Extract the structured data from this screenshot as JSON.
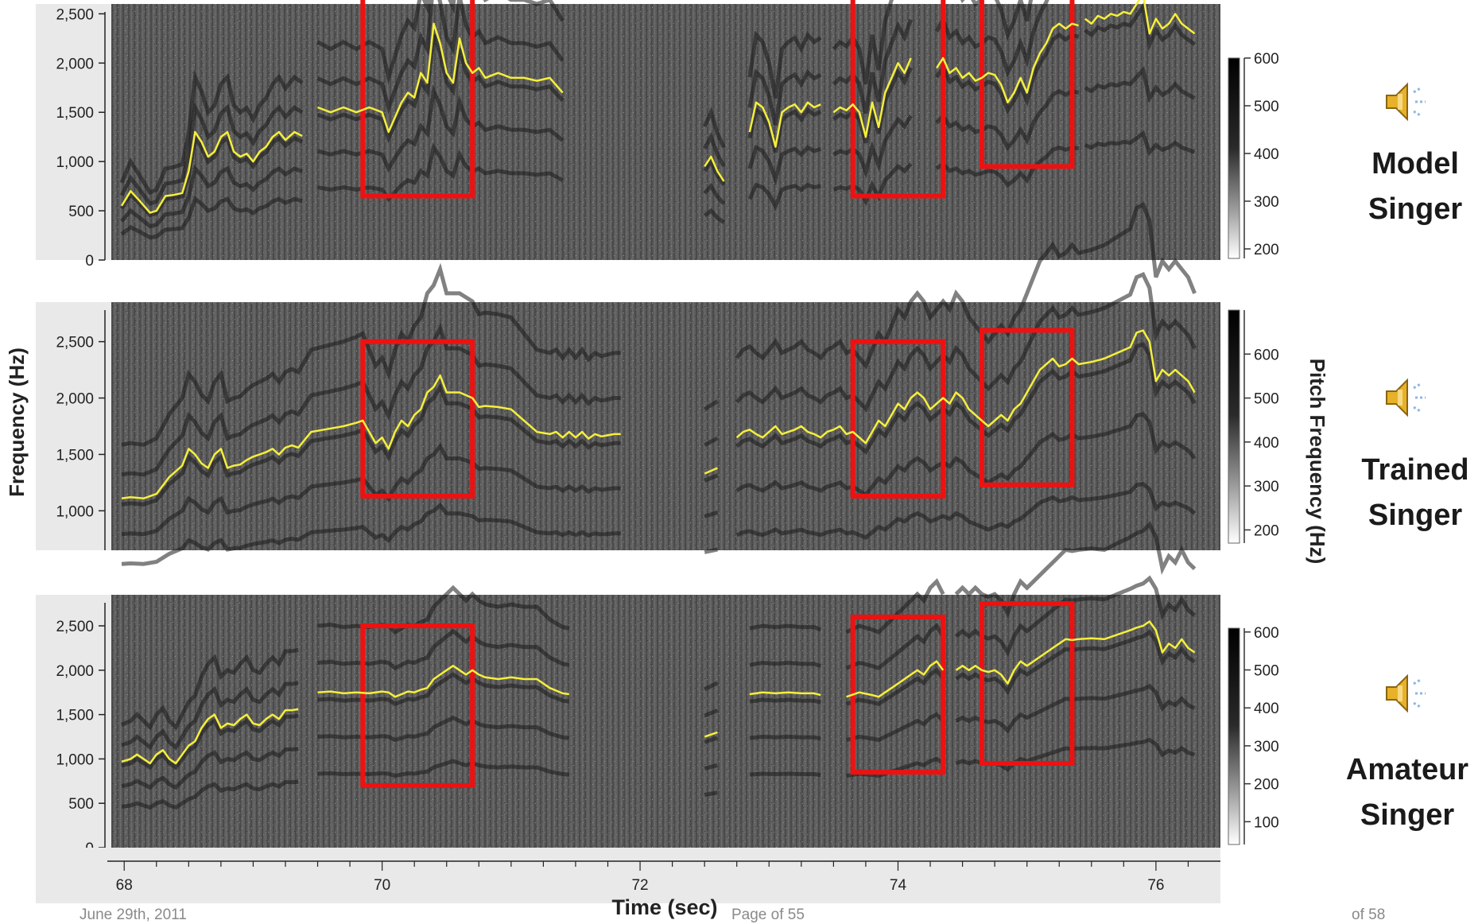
{
  "y_axis_label": "Frequency (Hz)",
  "x_axis_label": "Time (sec)",
  "colorbar_label": "Pitch Frequency (Hz)",
  "panels": [
    {
      "singer_line1": "Model",
      "singer_line2": "Singer"
    },
    {
      "singer_line1": "Trained",
      "singer_line2": "Singer"
    },
    {
      "singer_line1": "Amateur",
      "singer_line2": "Singer"
    }
  ],
  "speaker_icon": "speaker-sound-icon",
  "footer": {
    "left": "June 29th, 2011",
    "center": "Page of 55",
    "right": "of 58"
  },
  "colors": {
    "pitch_contour": "#f5ef3c",
    "highlight_box": "#ee1111",
    "spectrogram_bg": "#555555"
  },
  "chart_data": [
    {
      "type": "line",
      "title": "Model Singer",
      "xlabel": "Time (sec)",
      "ylabel": "Frequency (Hz)",
      "xlim": [
        67.9,
        76.5
      ],
      "ylim": [
        0,
        2600
      ],
      "y_ticks": [
        "0",
        "500",
        "1,000",
        "1,500",
        "2,000",
        "2,500"
      ],
      "y_tick_values": [
        0,
        500,
        1000,
        1500,
        2000,
        2500
      ],
      "colorbar_ticks": [
        "200",
        "300",
        "400",
        "500",
        "600"
      ],
      "colorbar_range": [
        180,
        600
      ],
      "highlight_time_ranges": [
        [
          69.85,
          70.7
        ],
        [
          73.65,
          74.35
        ],
        [
          74.65,
          75.35
        ]
      ],
      "highlight_freq_ranges": [
        [
          650,
          2700
        ],
        [
          650,
          2700
        ],
        [
          950,
          2800
        ]
      ],
      "series": [
        {
          "x": [
            67.98,
            68.05,
            68.12,
            68.2,
            68.25,
            68.32,
            68.38,
            68.45,
            68.5,
            68.55,
            68.6,
            68.65,
            68.7,
            68.75,
            68.8,
            68.85,
            68.9,
            68.95,
            69.0,
            69.05,
            69.1,
            69.15,
            69.2,
            69.25,
            69.32,
            69.38
          ],
          "y": [
            550,
            700,
            600,
            480,
            500,
            650,
            660,
            680,
            900,
            1300,
            1200,
            1050,
            1100,
            1250,
            1300,
            1100,
            1050,
            1080,
            1000,
            1100,
            1150,
            1250,
            1300,
            1220,
            1300,
            1260
          ]
        },
        {
          "x": [
            69.5,
            69.6,
            69.7,
            69.8,
            69.9,
            70.0,
            70.05,
            70.1,
            70.15,
            70.2,
            70.25,
            70.3,
            70.35,
            70.4,
            70.45,
            70.5,
            70.55,
            70.6,
            70.65,
            70.7,
            70.75,
            70.8,
            70.9,
            71.0,
            71.1,
            71.2,
            71.3,
            71.4
          ],
          "y": [
            1550,
            1500,
            1550,
            1500,
            1550,
            1500,
            1300,
            1450,
            1600,
            1700,
            1650,
            1900,
            1800,
            2400,
            2200,
            1900,
            1800,
            2250,
            2000,
            1900,
            1950,
            1850,
            1900,
            1850,
            1850,
            1820,
            1850,
            1700
          ]
        },
        {
          "x": [
            72.5,
            72.55,
            72.6,
            72.65
          ],
          "y": [
            950,
            1050,
            900,
            800
          ]
        },
        {
          "x": [
            72.85,
            72.9,
            72.95,
            73.0,
            73.05,
            73.1,
            73.15,
            73.2,
            73.25,
            73.3,
            73.35,
            73.4
          ],
          "y": [
            1300,
            1600,
            1550,
            1400,
            1150,
            1500,
            1550,
            1580,
            1500,
            1600,
            1550,
            1580
          ]
        },
        {
          "x": [
            73.5,
            73.55,
            73.6,
            73.65,
            73.7,
            73.75,
            73.8,
            73.85,
            73.9,
            73.95,
            74.0,
            74.05,
            74.1
          ],
          "y": [
            1500,
            1550,
            1520,
            1580,
            1500,
            1250,
            1600,
            1350,
            1700,
            1850,
            2000,
            1900,
            2050
          ]
        },
        {
          "x": [
            74.3,
            74.35,
            74.4,
            74.45,
            74.5,
            74.55,
            74.6,
            74.65,
            74.7,
            74.75,
            74.8,
            74.85,
            74.9,
            74.95,
            75.0,
            75.05,
            75.1,
            75.15,
            75.2,
            75.25,
            75.3,
            75.35,
            75.4
          ],
          "y": [
            1950,
            2050,
            1900,
            1950,
            1850,
            1900,
            1820,
            1850,
            1900,
            1880,
            1780,
            1600,
            1700,
            1850,
            1700,
            1950,
            2100,
            2200,
            2350,
            2400,
            2350,
            2400,
            2380
          ]
        },
        {
          "x": [
            75.45,
            75.5,
            75.55,
            75.6,
            75.65,
            75.7,
            75.75,
            75.8,
            75.85,
            75.9,
            75.95,
            76.0,
            76.05,
            76.1,
            76.15,
            76.2,
            76.25,
            76.3
          ],
          "y": [
            2450,
            2400,
            2480,
            2450,
            2500,
            2480,
            2520,
            2500,
            2600,
            2700,
            2300,
            2450,
            2350,
            2400,
            2500,
            2400,
            2350,
            2300
          ]
        }
      ]
    },
    {
      "type": "line",
      "title": "Trained Singer",
      "xlabel": "Time (sec)",
      "ylabel": "Frequency (Hz)",
      "xlim": [
        67.9,
        76.5
      ],
      "ylim": [
        650,
        2850
      ],
      "y_ticks": [
        "1,000",
        "1,500",
        "2,000",
        "2,500"
      ],
      "y_tick_values": [
        1000,
        1500,
        2000,
        2500
      ],
      "colorbar_ticks": [
        "200",
        "300",
        "400",
        "500",
        "600"
      ],
      "colorbar_range": [
        170,
        700
      ],
      "highlight_time_ranges": [
        [
          69.85,
          70.7
        ],
        [
          73.65,
          74.35
        ],
        [
          74.65,
          75.35
        ]
      ],
      "highlight_freq_ranges": [
        [
          1130,
          2500
        ],
        [
          1130,
          2500
        ],
        [
          1230,
          2600
        ]
      ],
      "series": [
        {
          "x": [
            67.98,
            68.05,
            68.15,
            68.25,
            68.35,
            68.45,
            68.5,
            68.55,
            68.6,
            68.65,
            68.7,
            68.75,
            68.8,
            68.85,
            68.9,
            68.95,
            69.0,
            69.05,
            69.1,
            69.15,
            69.2,
            69.25,
            69.3,
            69.35,
            69.45,
            69.55,
            69.7,
            69.8,
            69.85,
            69.9,
            69.95,
            70.0,
            70.05,
            70.1,
            70.15,
            70.2,
            70.25,
            70.3,
            70.35,
            70.4,
            70.45,
            70.5,
            70.6,
            70.7,
            70.75,
            70.8,
            70.9,
            71.0,
            71.1,
            71.2,
            71.3,
            71.35,
            71.4,
            71.45,
            71.5,
            71.55,
            71.6,
            71.65,
            71.7,
            71.8,
            71.85
          ],
          "y": [
            1110,
            1120,
            1110,
            1150,
            1300,
            1400,
            1550,
            1500,
            1420,
            1380,
            1500,
            1550,
            1380,
            1400,
            1410,
            1450,
            1480,
            1500,
            1520,
            1550,
            1500,
            1560,
            1580,
            1560,
            1700,
            1720,
            1750,
            1780,
            1800,
            1700,
            1600,
            1650,
            1550,
            1700,
            1800,
            1750,
            1850,
            1900,
            2050,
            2100,
            2200,
            2050,
            2050,
            2000,
            1920,
            1930,
            1920,
            1900,
            1800,
            1700,
            1680,
            1700,
            1650,
            1700,
            1650,
            1700,
            1640,
            1680,
            1660,
            1680,
            1680
          ]
        },
        {
          "x": [
            72.5,
            72.6
          ],
          "y": [
            1330,
            1380
          ]
        },
        {
          "x": [
            72.75,
            72.8,
            72.85,
            72.9,
            72.95,
            73.0,
            73.05,
            73.1,
            73.15,
            73.2,
            73.25,
            73.3,
            73.35,
            73.4,
            73.45,
            73.5,
            73.55,
            73.6,
            73.65,
            73.7,
            73.75,
            73.8,
            73.85,
            73.9,
            73.95,
            74.0,
            74.05,
            74.1,
            74.15,
            74.2,
            74.25,
            74.3,
            74.35,
            74.4,
            74.45,
            74.5,
            74.55,
            74.6,
            74.65,
            74.7,
            74.75,
            74.8,
            74.85,
            74.9,
            74.95,
            75.0,
            75.05,
            75.1,
            75.15,
            75.2,
            75.25,
            75.3,
            75.35,
            75.4,
            75.5,
            75.6,
            75.7,
            75.8,
            75.85,
            75.9,
            75.95,
            76.0,
            76.05,
            76.1,
            76.15,
            76.2,
            76.25,
            76.3
          ],
          "y": [
            1650,
            1700,
            1720,
            1680,
            1650,
            1700,
            1750,
            1680,
            1700,
            1720,
            1750,
            1700,
            1680,
            1650,
            1700,
            1720,
            1750,
            1680,
            1700,
            1650,
            1600,
            1700,
            1800,
            1750,
            1850,
            1950,
            1900,
            2000,
            2050,
            2000,
            1900,
            1950,
            2000,
            1950,
            2050,
            2000,
            1900,
            1850,
            1800,
            1750,
            1800,
            1850,
            1800,
            1900,
            1950,
            2050,
            2150,
            2250,
            2300,
            2350,
            2280,
            2300,
            2350,
            2300,
            2320,
            2350,
            2400,
            2450,
            2580,
            2600,
            2500,
            2150,
            2250,
            2200,
            2250,
            2200,
            2150,
            2050
          ]
        }
      ]
    },
    {
      "type": "line",
      "title": "Amateur Singer",
      "xlabel": "Time (sec)",
      "ylabel": "Frequency (Hz)",
      "xlim": [
        67.9,
        76.5
      ],
      "ylim": [
        0,
        2850
      ],
      "y_ticks": [
        "0",
        "500",
        "1,000",
        "1,500",
        "2,000",
        "2,500"
      ],
      "y_tick_values": [
        0,
        500,
        1000,
        1500,
        2000,
        2500
      ],
      "colorbar_ticks": [
        "100",
        "200",
        "300",
        "400",
        "500",
        "600"
      ],
      "colorbar_range": [
        40,
        610
      ],
      "highlight_time_ranges": [
        [
          69.85,
          70.7
        ],
        [
          73.65,
          74.35
        ],
        [
          74.65,
          75.35
        ]
      ],
      "highlight_freq_ranges": [
        [
          700,
          2500
        ],
        [
          850,
          2600
        ],
        [
          950,
          2750
        ]
      ],
      "x_ticks": [
        68,
        70,
        72,
        74,
        76
      ],
      "series": [
        {
          "x": [
            67.98,
            68.05,
            68.1,
            68.15,
            68.2,
            68.25,
            68.3,
            68.35,
            68.4,
            68.45,
            68.5,
            68.55,
            68.6,
            68.65,
            68.7,
            68.75,
            68.8,
            68.85,
            68.9,
            68.95,
            69.0,
            69.05,
            69.1,
            69.15,
            69.2,
            69.25,
            69.3,
            69.35
          ],
          "y": [
            970,
            1000,
            1050,
            1000,
            950,
            1050,
            1100,
            1000,
            950,
            1050,
            1150,
            1200,
            1350,
            1450,
            1500,
            1350,
            1400,
            1380,
            1450,
            1500,
            1400,
            1380,
            1450,
            1500,
            1450,
            1550,
            1550,
            1560
          ]
        },
        {
          "x": [
            69.5,
            69.6,
            69.7,
            69.8,
            69.9,
            70.0,
            70.05,
            70.1,
            70.15,
            70.2,
            70.25,
            70.3,
            70.35,
            70.4,
            70.45,
            70.5,
            70.55,
            70.6,
            70.65,
            70.7,
            70.75,
            70.8,
            70.9,
            71.0,
            71.1,
            71.2,
            71.3,
            71.4,
            71.45
          ],
          "y": [
            1750,
            1760,
            1740,
            1750,
            1740,
            1760,
            1750,
            1700,
            1730,
            1760,
            1750,
            1780,
            1800,
            1900,
            1950,
            2000,
            2050,
            2000,
            1950,
            2000,
            1950,
            1920,
            1900,
            1920,
            1900,
            1900,
            1800,
            1740,
            1730
          ]
        },
        {
          "x": [
            72.5,
            72.6
          ],
          "y": [
            1250,
            1300
          ]
        },
        {
          "x": [
            72.85,
            72.95,
            73.05,
            73.15,
            73.25,
            73.35,
            73.4
          ],
          "y": [
            1730,
            1750,
            1740,
            1750,
            1740,
            1740,
            1720
          ]
        },
        {
          "x": [
            73.6,
            73.7,
            73.8,
            73.85,
            73.9,
            73.95,
            74.0,
            74.05,
            74.1,
            74.15,
            74.2,
            74.25,
            74.3,
            74.35
          ],
          "y": [
            1700,
            1750,
            1720,
            1700,
            1750,
            1800,
            1850,
            1900,
            1950,
            2000,
            1950,
            2050,
            2100,
            2000
          ]
        },
        {
          "x": [
            74.45,
            74.5,
            74.55,
            74.6,
            74.65,
            74.7,
            74.75,
            74.8,
            74.85,
            74.9,
            74.95,
            75.0,
            75.05,
            75.1,
            75.15,
            75.2,
            75.25,
            75.3,
            75.35,
            75.4,
            75.5,
            75.6,
            75.7,
            75.8,
            75.85,
            75.9,
            75.95,
            76.0,
            76.05,
            76.1,
            76.15,
            76.2,
            76.25,
            76.3
          ],
          "y": [
            2000,
            2050,
            2000,
            2050,
            2000,
            1980,
            2000,
            1950,
            1850,
            2000,
            2100,
            2050,
            2100,
            2150,
            2200,
            2250,
            2300,
            2350,
            2340,
            2350,
            2360,
            2350,
            2400,
            2450,
            2480,
            2500,
            2550,
            2450,
            2200,
            2300,
            2250,
            2350,
            2250,
            2200
          ]
        }
      ]
    }
  ]
}
